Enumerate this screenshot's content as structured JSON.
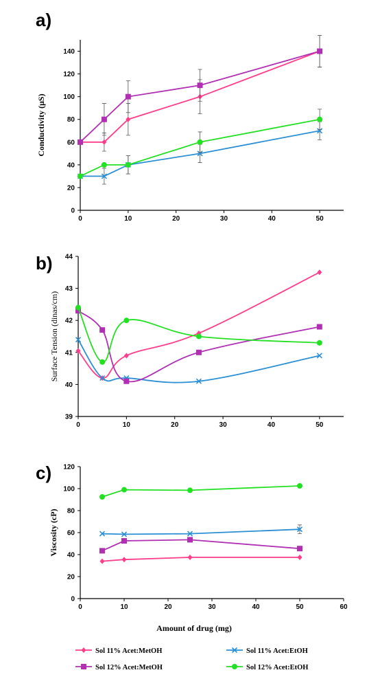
{
  "chart_data": [
    {
      "type": "line",
      "panel_label": "a)",
      "ylabel": "Conductivity (μS)",
      "xlabel": "",
      "xlim": [
        0,
        55
      ],
      "ylim": [
        0,
        150
      ],
      "xticks": [
        0,
        10,
        20,
        30,
        40,
        50
      ],
      "yticks": [
        0,
        20,
        40,
        60,
        80,
        100,
        120,
        140
      ],
      "grid": false,
      "smooth": false,
      "series": [
        {
          "name": "Sol 11% Acet:MetOH",
          "color": "#ff3d8b",
          "marker": "diamond",
          "x": [
            0,
            5,
            10,
            25,
            50
          ],
          "y": [
            60,
            60,
            80,
            100,
            140
          ],
          "err": [
            0,
            8,
            14,
            15,
            14
          ]
        },
        {
          "name": "Sol 11% Acet:EtOH",
          "color": "#2b8fd6",
          "marker": "x",
          "x": [
            0,
            5,
            10,
            25,
            50
          ],
          "y": [
            30,
            30,
            40,
            50,
            70
          ],
          "err": [
            0,
            7,
            8,
            8,
            8
          ]
        },
        {
          "name": "Sol 12% Acet:MetOH",
          "color": "#b02fb3",
          "marker": "square",
          "x": [
            0,
            5,
            10,
            25,
            50
          ],
          "y": [
            60,
            80,
            100,
            110,
            140
          ],
          "err": [
            0,
            14,
            14,
            14,
            14
          ]
        },
        {
          "name": "Sol 12% Acet:EtOH",
          "color": "#22e022",
          "marker": "circle",
          "x": [
            0,
            5,
            10,
            25,
            50
          ],
          "y": [
            30,
            40,
            40,
            60,
            80
          ],
          "err": [
            0,
            0,
            8,
            9,
            9
          ]
        }
      ]
    },
    {
      "type": "line",
      "panel_label": "b)",
      "ylabel": "Surface Tension (dinas/cm)",
      "xlabel": "",
      "xlim": [
        0,
        55
      ],
      "ylim": [
        39,
        44
      ],
      "xticks": [
        0,
        10,
        20,
        30,
        40,
        50
      ],
      "yticks": [
        39,
        40,
        41,
        42,
        43,
        44
      ],
      "grid": false,
      "smooth": true,
      "series": [
        {
          "name": "Sol 11% Acet:MetOH",
          "color": "#ff3d8b",
          "marker": "diamond",
          "x": [
            0,
            5,
            10,
            25,
            50
          ],
          "y": [
            41.05,
            40.2,
            40.9,
            41.6,
            43.5
          ]
        },
        {
          "name": "Sol 11% Acet:EtOH",
          "color": "#2b8fd6",
          "marker": "x",
          "x": [
            0,
            5,
            10,
            25,
            50
          ],
          "y": [
            41.4,
            40.2,
            40.2,
            40.1,
            40.9
          ]
        },
        {
          "name": "Sol 12% Acet:MetOH",
          "color": "#b02fb3",
          "marker": "square",
          "x": [
            0,
            5,
            10,
            25,
            50
          ],
          "y": [
            42.3,
            41.7,
            40.1,
            41.0,
            41.8
          ]
        },
        {
          "name": "Sol 12% Acet:EtOH",
          "color": "#22e022",
          "marker": "circle",
          "x": [
            0,
            5,
            10,
            25,
            50
          ],
          "y": [
            42.4,
            40.7,
            42.0,
            41.5,
            41.3
          ]
        }
      ]
    },
    {
      "type": "line",
      "panel_label": "c)",
      "ylabel": "Viscosity (cP)",
      "xlabel": "Amount of drug (mg)",
      "xlim": [
        0,
        60
      ],
      "ylim": [
        0,
        120
      ],
      "xticks": [
        0,
        10,
        20,
        30,
        40,
        50,
        60
      ],
      "yticks": [
        0,
        20,
        40,
        60,
        80,
        100,
        120
      ],
      "grid": false,
      "smooth": false,
      "series": [
        {
          "name": "Sol 11% Acet:MetOH",
          "color": "#ff3d8b",
          "marker": "diamond",
          "x": [
            5,
            10,
            25,
            50
          ],
          "y": [
            34,
            35.5,
            37.5,
            37.5
          ],
          "err": [
            0,
            0,
            0,
            0
          ]
        },
        {
          "name": "Sol 11% Acet:EtOH",
          "color": "#2b8fd6",
          "marker": "x",
          "x": [
            5,
            10,
            25,
            50
          ],
          "y": [
            59,
            58.5,
            59,
            63
          ],
          "err": [
            0,
            0,
            0,
            4
          ]
        },
        {
          "name": "Sol 12% Acet:MetOH",
          "color": "#b02fb3",
          "marker": "square",
          "x": [
            5,
            10,
            25,
            50
          ],
          "y": [
            43.5,
            52.5,
            53.5,
            45.5
          ],
          "err": [
            0,
            0,
            0,
            0
          ]
        },
        {
          "name": "Sol 12% Acet:EtOH",
          "color": "#22e022",
          "marker": "circle",
          "x": [
            5,
            10,
            25,
            50
          ],
          "y": [
            92.5,
            99,
            98.5,
            102.5
          ],
          "err": [
            0,
            0,
            0,
            0
          ]
        }
      ]
    }
  ],
  "legend": {
    "placement": "bottom",
    "entries": [
      {
        "label": "Sol 11% Acet:MetOH",
        "color": "#ff3d8b",
        "marker": "diamond"
      },
      {
        "label": "Sol 11% Acet:EtOH",
        "color": "#2b8fd6",
        "marker": "x"
      },
      {
        "label": "Sol 12% Acet:MetOH",
        "color": "#b02fb3",
        "marker": "square"
      },
      {
        "label": "Sol 12% Acet:EtOH",
        "color": "#22e022",
        "marker": "circle"
      }
    ]
  }
}
